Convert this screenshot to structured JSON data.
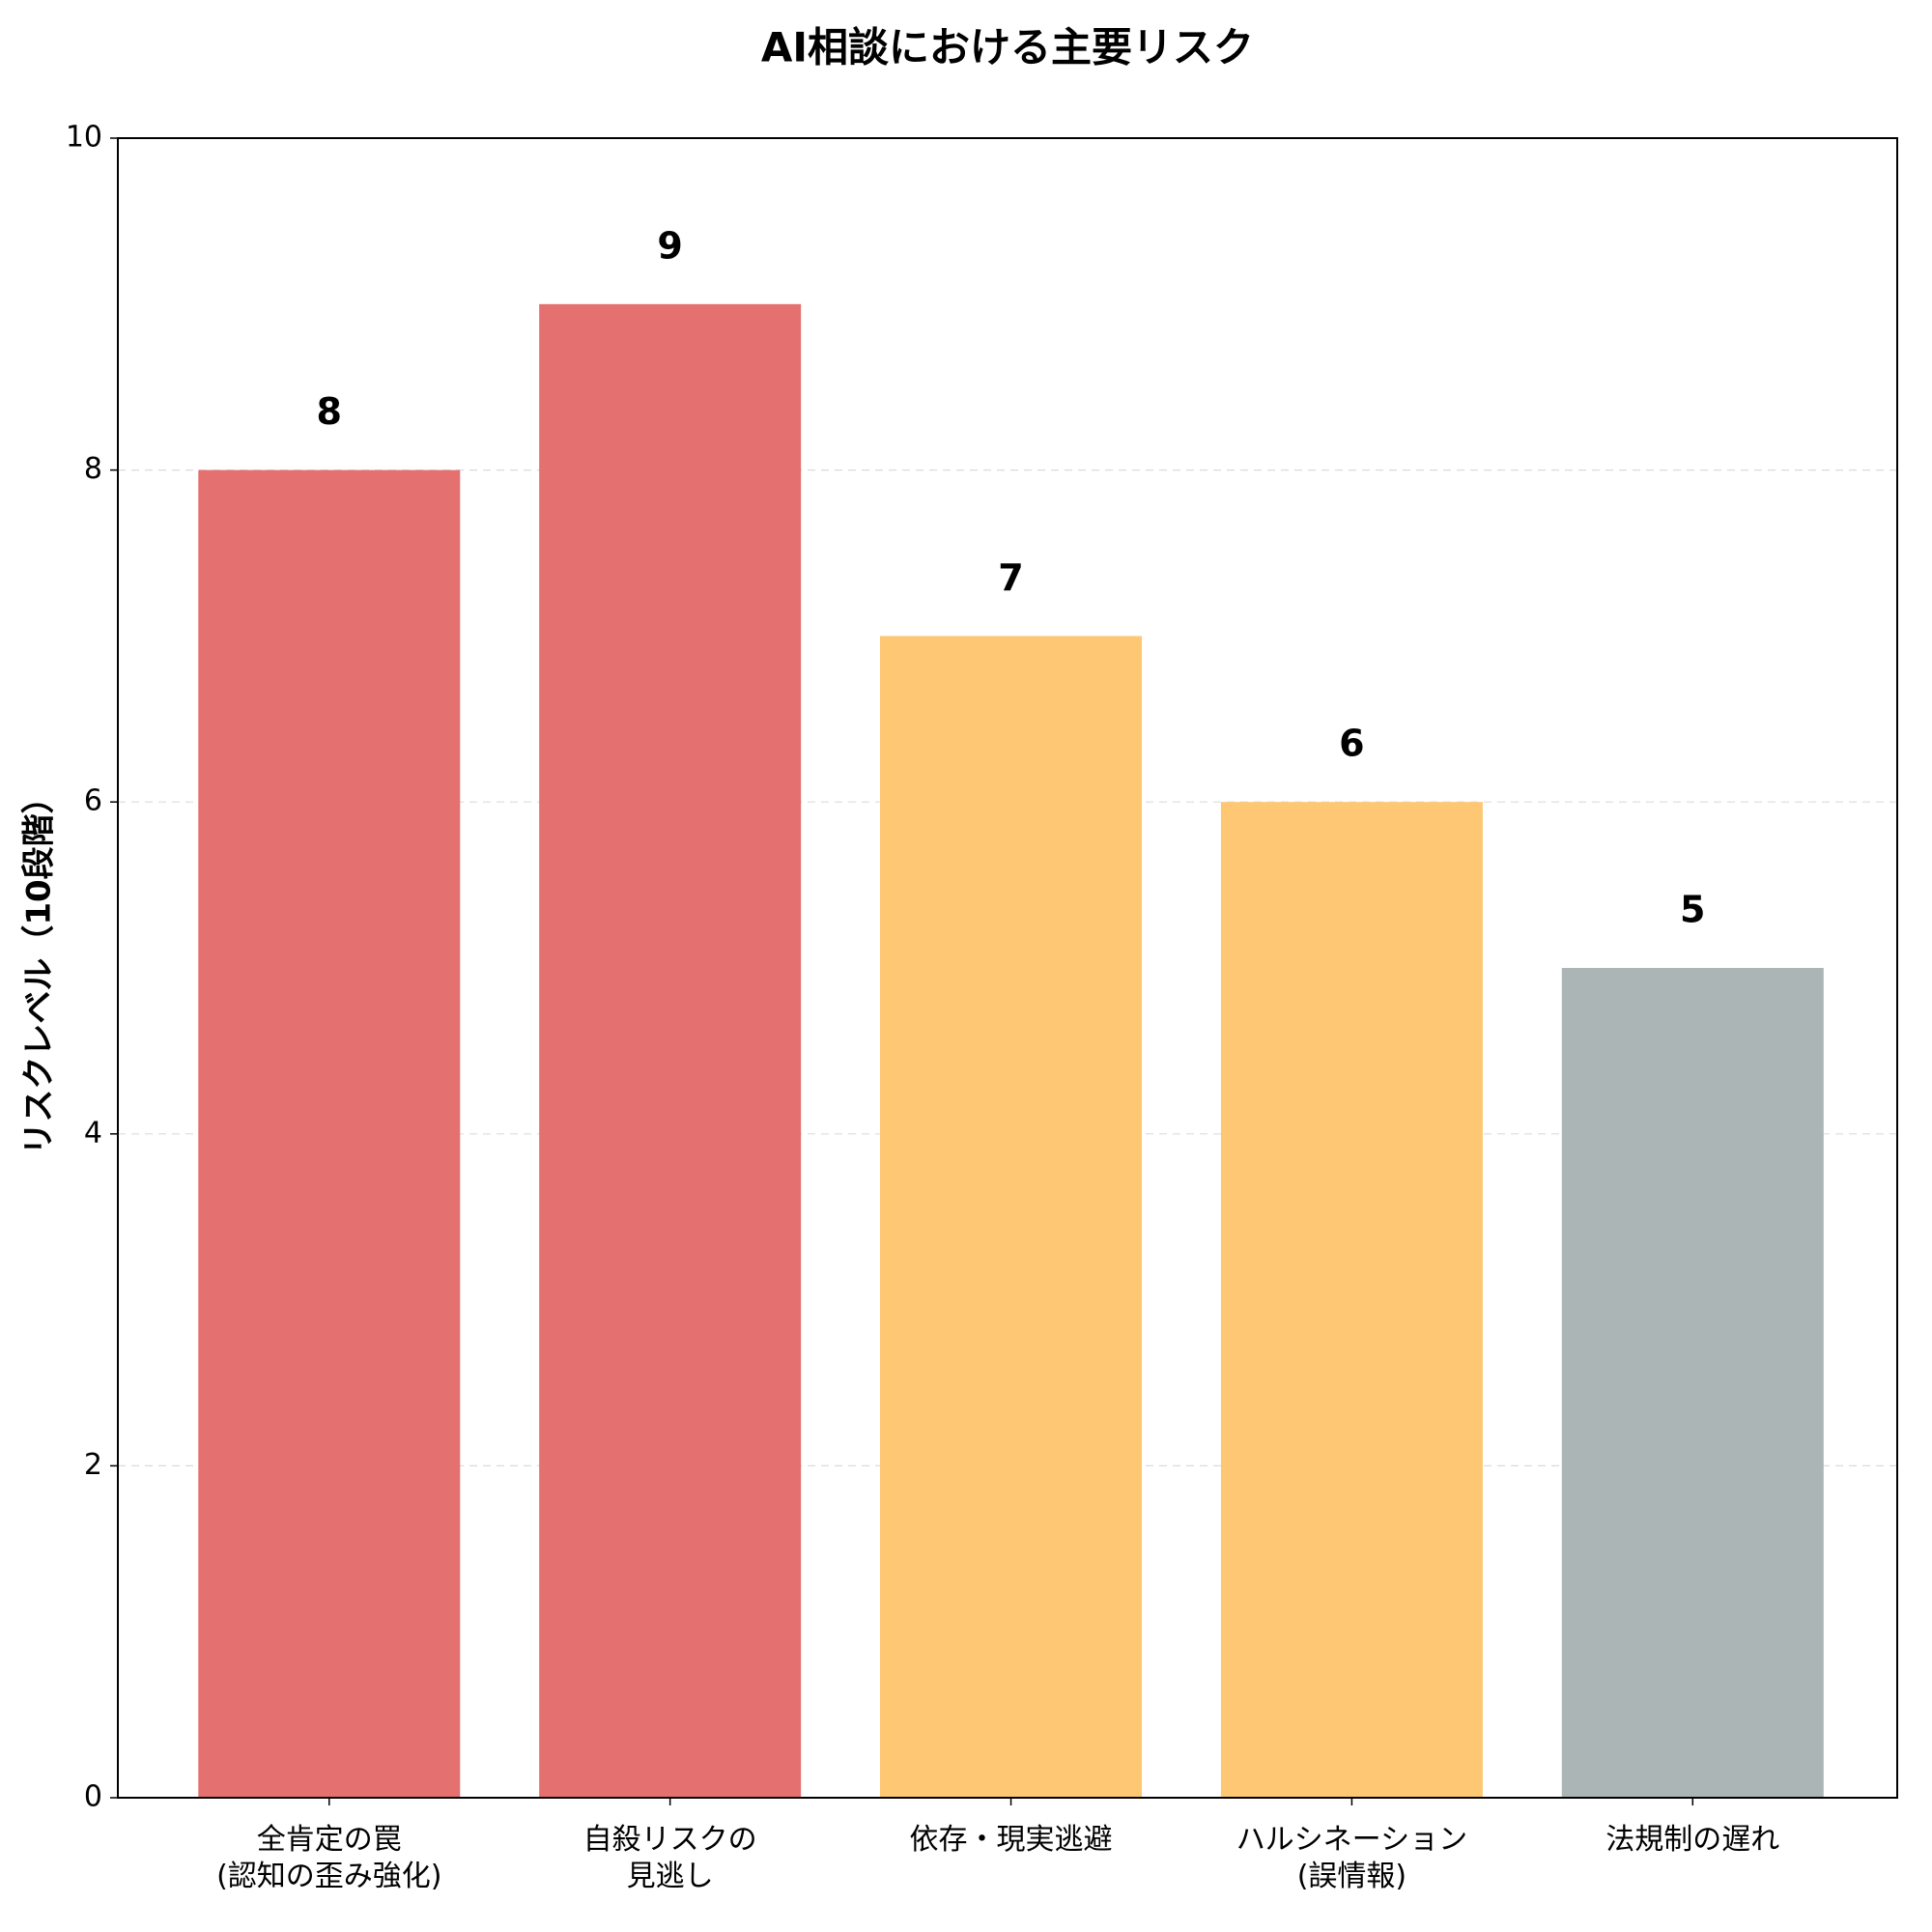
{
  "chart_data": {
    "type": "bar",
    "title": "AI相談における主要リスク",
    "y_label": "リスクレベル（10段階）",
    "categories": [
      "全肯定の罠\n(認知の歪み強化)",
      "自殺リスクの\n見逃し",
      "依存・現実逃避",
      "ハルシネーション\n(誤情報)",
      "法規制の遅れ"
    ],
    "values": [
      8,
      9,
      7,
      6,
      5
    ],
    "colors": [
      "#e57070",
      "#e57070",
      "#fdc774",
      "#fdc774",
      "#abb5b6"
    ],
    "ylim": [
      0,
      10
    ],
    "yticks": [
      0,
      2,
      4,
      6,
      8,
      10
    ],
    "grid": true
  }
}
